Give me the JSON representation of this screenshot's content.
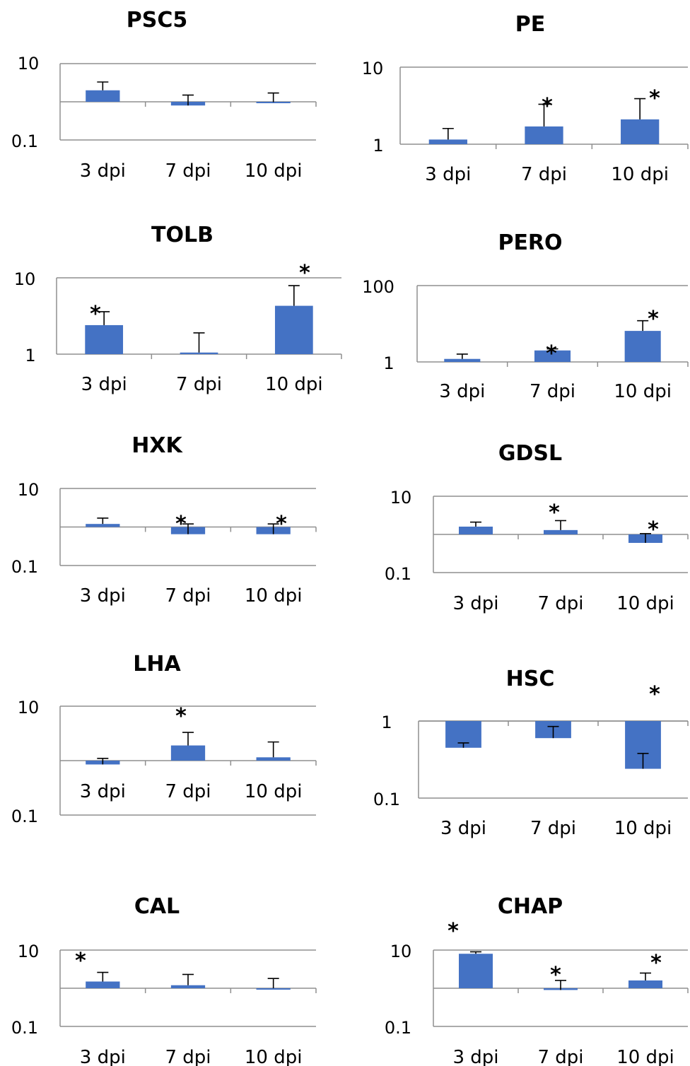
{
  "chart_data": [
    {
      "type": "bar",
      "title": "PSC5",
      "yscale": "log",
      "ylim": [
        0.1,
        10
      ],
      "yticks": [
        "10",
        "0.1"
      ],
      "baseline": 1,
      "categories": [
        "3 dpi",
        "7 dpi",
        "10 dpi"
      ],
      "values": [
        2.0,
        0.8,
        0.98
      ],
      "errors_upper": [
        3.3,
        1.5,
        1.7
      ],
      "significant": [
        false,
        false,
        false
      ]
    },
    {
      "type": "bar",
      "title": "PE",
      "yscale": "log",
      "ylim": [
        1,
        10
      ],
      "yticks": [
        "10",
        "1"
      ],
      "baseline": 1,
      "categories": [
        "3 dpi",
        "7 dpi",
        "10 dpi"
      ],
      "values": [
        1.15,
        1.7,
        2.1
      ],
      "errors_upper": [
        1.6,
        3.3,
        3.9
      ],
      "significant": [
        false,
        true,
        true
      ]
    },
    {
      "type": "bar",
      "title": "TOLB",
      "yscale": "log",
      "ylim": [
        1,
        10
      ],
      "yticks": [
        "10",
        "1"
      ],
      "baseline": 1,
      "categories": [
        "3 dpi",
        "7 dpi",
        "10 dpi"
      ],
      "values": [
        2.4,
        1.05,
        4.3
      ],
      "errors_upper": [
        3.6,
        1.9,
        7.9
      ],
      "significant": [
        true,
        false,
        true
      ]
    },
    {
      "type": "bar",
      "title": "PERO",
      "yscale": "log",
      "ylim": [
        1,
        100
      ],
      "yticks": [
        "100",
        "1"
      ],
      "baseline": 1,
      "categories": [
        "3 dpi",
        "7 dpi",
        "10 dpi"
      ],
      "values": [
        1.2,
        2.0,
        6.5
      ],
      "errors_upper": [
        1.6,
        2.2,
        12.0
      ],
      "significant": [
        false,
        true,
        true
      ]
    },
    {
      "type": "bar",
      "title": "HXK",
      "yscale": "log",
      "ylim": [
        0.1,
        10
      ],
      "yticks": [
        "10",
        "0.1"
      ],
      "baseline": 1,
      "categories": [
        "3 dpi",
        "7 dpi",
        "10 dpi"
      ],
      "values": [
        1.2,
        0.65,
        0.65
      ],
      "errors_upper": [
        1.7,
        1.2,
        1.2
      ],
      "significant": [
        false,
        true,
        true
      ]
    },
    {
      "type": "bar",
      "title": "GDSL",
      "yscale": "log",
      "ylim": [
        0.1,
        10
      ],
      "yticks": [
        "10",
        "0.1"
      ],
      "baseline": 1,
      "categories": [
        "3 dpi",
        "7 dpi",
        "10 dpi"
      ],
      "values": [
        1.6,
        1.3,
        0.6
      ],
      "errors_upper": [
        2.1,
        2.3,
        1.05
      ],
      "significant": [
        false,
        true,
        true
      ]
    },
    {
      "type": "bar",
      "title": "LHA",
      "yscale": "log",
      "ylim": [
        0.1,
        10
      ],
      "yticks": [
        "10",
        "0.1"
      ],
      "baseline": 1,
      "categories": [
        "3 dpi",
        "7 dpi",
        "10 dpi"
      ],
      "values": [
        0.85,
        1.9,
        1.15
      ],
      "errors_upper": [
        1.1,
        3.3,
        2.2
      ],
      "significant": [
        false,
        true,
        false
      ]
    },
    {
      "type": "bar",
      "title": "HSC",
      "yscale": "log",
      "ylim": [
        0.1,
        1
      ],
      "yticks": [
        "1",
        "0.1"
      ],
      "baseline": 1,
      "categories": [
        "3 dpi",
        "7 dpi",
        "10 dpi"
      ],
      "values": [
        0.45,
        0.6,
        0.24
      ],
      "errors_upper": [
        0.52,
        0.85,
        0.38
      ],
      "significant": [
        false,
        false,
        true
      ]
    },
    {
      "type": "bar",
      "title": "CAL",
      "yscale": "log",
      "ylim": [
        0.1,
        10
      ],
      "yticks": [
        "10",
        "0.1"
      ],
      "baseline": 1,
      "categories": [
        "3 dpi",
        "7 dpi",
        "10 dpi"
      ],
      "values": [
        1.5,
        1.2,
        1.0
      ],
      "errors_upper": [
        2.6,
        2.3,
        1.8
      ],
      "significant": [
        true,
        false,
        false
      ]
    },
    {
      "type": "bar",
      "title": "CHAP",
      "yscale": "log",
      "ylim": [
        0.1,
        10
      ],
      "yticks": [
        "10",
        "0.1"
      ],
      "baseline": 1,
      "categories": [
        "3 dpi",
        "7 dpi",
        "10 dpi"
      ],
      "values": [
        8.0,
        0.9,
        1.6
      ],
      "errors_upper": [
        9.0,
        1.6,
        2.5
      ],
      "significant": [
        true,
        true,
        true
      ]
    }
  ]
}
